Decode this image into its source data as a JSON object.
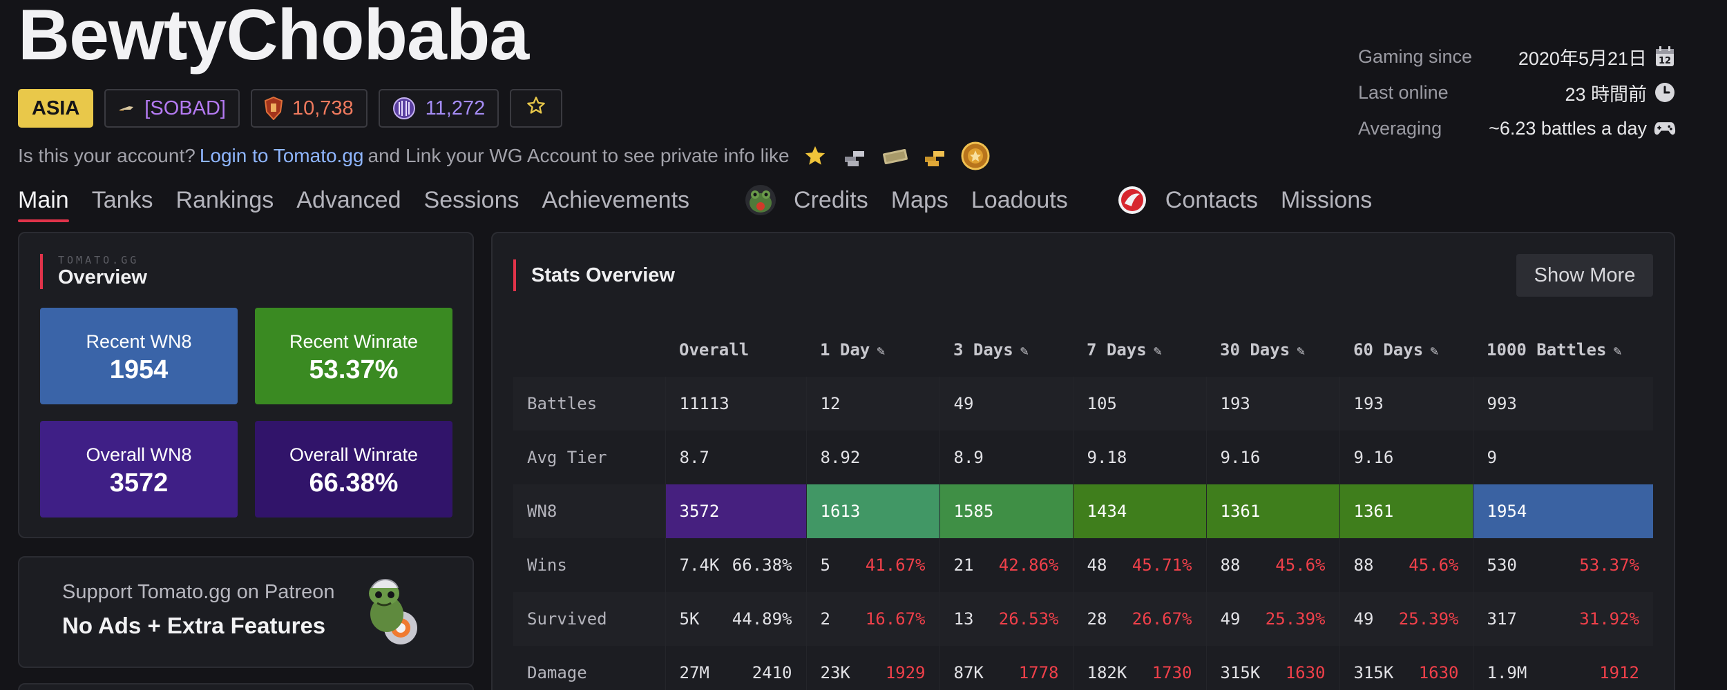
{
  "player": {
    "name": "BewtyChobaba"
  },
  "badges": {
    "region": "ASIA",
    "clan": "[SOBAD]",
    "rating": "10,738",
    "moe": "11,272"
  },
  "info": [
    {
      "label": "Gaming since",
      "value": "2020年5月21日",
      "icon": "calendar-icon"
    },
    {
      "label": "Last online",
      "value": "23 時間前",
      "icon": "clock-icon"
    },
    {
      "label": "Averaging",
      "value": "~6.23 battles a day",
      "icon": "gamepad-icon"
    }
  ],
  "claim": {
    "prefix": "Is this your account?",
    "link": "Login to Tomato.gg",
    "suffix": "and Link your WG Account to see private info like",
    "icons": [
      "star-icon",
      "silver-icon",
      "credits-icon",
      "gold-icon",
      "medal-icon"
    ]
  },
  "nav": {
    "tabs1": [
      "Main",
      "Tanks",
      "Rankings",
      "Advanced",
      "Sessions",
      "Achievements"
    ],
    "tabs2": [
      "Credits",
      "Maps",
      "Loadouts"
    ],
    "tabs3": [
      "Contacts",
      "Missions"
    ],
    "active": "Main"
  },
  "overview": {
    "sub": "TOMATO.GG",
    "title": "Overview",
    "tiles": [
      {
        "label": "Recent WN8",
        "value": "1954",
        "color": "#3a64a8"
      },
      {
        "label": "Recent Winrate",
        "value": "53.37%",
        "color": "#3a8a22"
      },
      {
        "label": "Overall WN8",
        "value": "3572",
        "color": "#3f1f86"
      },
      {
        "label": "Overall Winrate",
        "value": "66.38%",
        "color": "#31146a"
      }
    ]
  },
  "patreon": {
    "line1": "Support Tomato.gg on Patreon",
    "line2": "No Ads + Extra Features"
  },
  "stats": {
    "title": "Stats Overview",
    "show_more": "Show More",
    "columns": [
      "Overall",
      "1 Day",
      "3 Days",
      "7 Days",
      "30 Days",
      "60 Days",
      "1000 Battles"
    ],
    "rows": {
      "battles": {
        "label": "Battles",
        "values": [
          "11113",
          "12",
          "49",
          "105",
          "193",
          "193",
          "993"
        ]
      },
      "avg_tier": {
        "label": "Avg Tier",
        "values": [
          "8.7",
          "8.92",
          "8.9",
          "9.18",
          "9.16",
          "9.16",
          "9"
        ]
      },
      "wn8": {
        "label": "WN8",
        "values": [
          "3572",
          "1613",
          "1585",
          "1434",
          "1361",
          "1361",
          "1954"
        ],
        "colors": [
          "#46207f",
          "#419765",
          "#3f8f45",
          "#3f7e1c",
          "#3f7e1c",
          "#3f7e1c",
          "#3a62a2"
        ]
      },
      "wins": {
        "label": "Wins",
        "values": [
          "7.4K",
          "5",
          "21",
          "48",
          "88",
          "88",
          "530"
        ],
        "pcts": [
          "66.38%",
          "41.67%",
          "42.86%",
          "45.71%",
          "45.6%",
          "45.6%",
          "53.37%"
        ]
      },
      "survived": {
        "label": "Survived",
        "values": [
          "5K",
          "2",
          "13",
          "28",
          "49",
          "49",
          "317"
        ],
        "pcts": [
          "44.89%",
          "16.67%",
          "26.53%",
          "26.67%",
          "25.39%",
          "25.39%",
          "31.92%"
        ]
      },
      "damage": {
        "label": "Damage",
        "values": [
          "27M",
          "23K",
          "87K",
          "182K",
          "315K",
          "315K",
          "1.9M"
        ],
        "avgs": [
          "2410",
          "1929",
          "1778",
          "1730",
          "1630",
          "1630",
          "1912"
        ]
      }
    }
  }
}
